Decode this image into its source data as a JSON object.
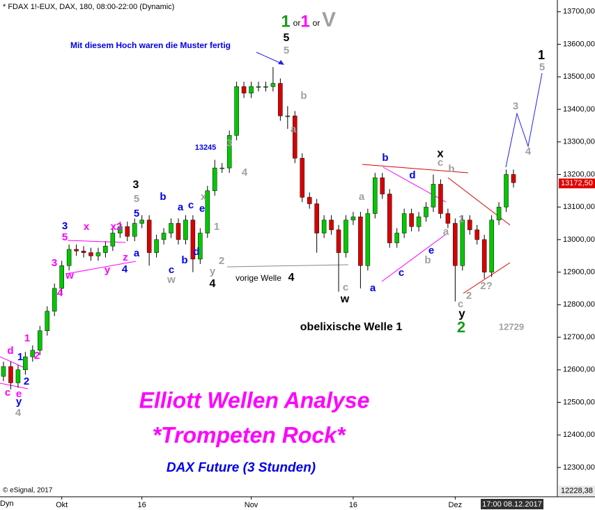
{
  "chart_data": {
    "type": "candlestick",
    "header": "* FDAX 1!-EUX, DAX, 180, 08:00-22:00 (Dynamic)",
    "copyright": "© eSignal, 2017",
    "mode": "Dyn",
    "cursor_time": "17:00 08.12.2017",
    "up_color": "#00c800",
    "down_color": "#d80000",
    "categories": [
      null,
      null,
      null,
      null,
      null,
      null,
      null,
      null,
      "Okt",
      null,
      null,
      null,
      null,
      null,
      null,
      null,
      null,
      null,
      null,
      "16",
      null,
      null,
      null,
      null,
      null,
      null,
      null,
      null,
      null,
      null,
      null,
      null,
      null,
      null,
      "Nov",
      null,
      null,
      null,
      null,
      null,
      null,
      null,
      null,
      null,
      null,
      null,
      null,
      null,
      "16",
      null,
      null,
      null,
      null,
      null,
      null,
      null,
      null,
      null,
      null,
      null,
      null,
      null,
      "Dez",
      null,
      null,
      null,
      null,
      null,
      null,
      null,
      null
    ],
    "open": [
      12580,
      12610,
      12560,
      12600,
      12640,
      12660,
      12720,
      12780,
      12850,
      12920,
      12970,
      12965,
      12960,
      12950,
      12960,
      12980,
      13020,
      13040,
      13010,
      13050,
      13060,
      12960,
      13000,
      13020,
      13050,
      13000,
      13060,
      12940,
      13020,
      13150,
      13220,
      13220,
      13320,
      13470,
      13450,
      13470,
      13470,
      13470,
      13480,
      13380,
      13380,
      13250,
      13130,
      13110,
      13020,
      13060,
      13030,
      12960,
      13060,
      13070,
      12920,
      13080,
      13190,
      13140,
      12990,
      13020,
      13080,
      13040,
      13070,
      13100,
      13170,
      13080,
      13050,
      12920,
      13060,
      13030,
      13000,
      12900,
      13060,
      13100,
      13200
    ],
    "high": [
      12625,
      12625,
      12615,
      12655,
      12675,
      12735,
      12795,
      12865,
      12935,
      12985,
      12985,
      12980,
      12975,
      12975,
      12995,
      13035,
      13055,
      13055,
      13065,
      13075,
      13075,
      13015,
      13035,
      13065,
      13065,
      13075,
      13075,
      13035,
      13165,
      13245,
      13235,
      13335,
      13485,
      13485,
      13485,
      13485,
      13485,
      13530,
      13495,
      13410,
      13395,
      13265,
      13145,
      13125,
      13075,
      13075,
      13045,
      13075,
      13085,
      13085,
      13095,
      13205,
      13205,
      13155,
      13035,
      13095,
      13095,
      13085,
      13115,
      13200,
      13185,
      13095,
      13065,
      13075,
      13075,
      13045,
      13015,
      13075,
      13115,
      13215,
      13215
    ],
    "low": [
      12565,
      12540,
      12545,
      12585,
      12625,
      12645,
      12705,
      12765,
      12835,
      12905,
      12950,
      12945,
      12935,
      12935,
      12945,
      12965,
      13005,
      12995,
      12995,
      13035,
      12920,
      12945,
      12985,
      13005,
      12985,
      12985,
      12900,
      12925,
      13005,
      13135,
      13205,
      13205,
      13305,
      13435,
      13435,
      13455,
      13455,
      13455,
      13365,
      13340,
      13235,
      13115,
      13095,
      12960,
      13005,
      13015,
      12840,
      12945,
      13045,
      12850,
      12905,
      13065,
      13125,
      12975,
      12975,
      13005,
      13025,
      13025,
      13055,
      13085,
      13065,
      13035,
      12810,
      12905,
      13015,
      12985,
      12880,
      12885,
      13045,
      13085,
      13160
    ],
    "close": [
      12610,
      12560,
      12600,
      12640,
      12660,
      12720,
      12780,
      12850,
      12920,
      12970,
      12965,
      12960,
      12950,
      12960,
      12980,
      13020,
      13040,
      13010,
      13050,
      13060,
      12960,
      13000,
      13020,
      13050,
      13000,
      13060,
      12940,
      13020,
      13150,
      13220,
      13220,
      13320,
      13470,
      13450,
      13470,
      13470,
      13470,
      13480,
      13380,
      13380,
      13250,
      13130,
      13110,
      13020,
      13060,
      13030,
      12960,
      13060,
      13070,
      12920,
      13080,
      13190,
      13140,
      12990,
      13020,
      13080,
      13040,
      13070,
      13100,
      13170,
      13080,
      13050,
      12920,
      13060,
      13030,
      13000,
      12900,
      13060,
      13100,
      13200,
      13175
    ],
    "ylim": [
      12210,
      13736
    ],
    "yticks": [
      {
        "value": 12300,
        "label": "12300,00"
      },
      {
        "value": 12400,
        "label": "12400,00"
      },
      {
        "value": 12500,
        "label": "12500,00"
      },
      {
        "value": 12600,
        "label": "12600,00"
      },
      {
        "value": 12700,
        "label": "12700,00"
      },
      {
        "value": 12800,
        "label": "12800,00"
      },
      {
        "value": 12900,
        "label": "12900,00"
      },
      {
        "value": 13000,
        "label": "13000,00"
      },
      {
        "value": 13100,
        "label": "13100,00"
      },
      {
        "value": 13200,
        "label": "13200,00"
      },
      {
        "value": 13300,
        "label": "13300,00"
      },
      {
        "value": 13400,
        "label": "13400,00"
      },
      {
        "value": 13500,
        "label": "13500,00"
      },
      {
        "value": 13600,
        "label": "13600,00"
      },
      {
        "value": 13700,
        "label": "13700,00"
      }
    ],
    "current_price": {
      "value": 13172.5,
      "label": "13172,50"
    },
    "bottom_price": {
      "value": 12228.38,
      "label": "12228,38"
    },
    "annotations": [
      {
        "text": "1",
        "color": "#1a9a1a"
      },
      {
        "text": "or",
        "color": "#000"
      },
      {
        "text": "1",
        "color": "#ff00ff"
      },
      {
        "text": "or",
        "color": "#000"
      },
      {
        "text": "V",
        "color": "#a0a0a0"
      },
      {
        "text": "5",
        "color": "#000"
      },
      {
        "text": "5",
        "color": "#a0a0a0"
      },
      {
        "text": "Mit diesem Hoch waren die Muster fertig",
        "color": "#0000ee"
      },
      {
        "text": "1",
        "color": "#000"
      },
      {
        "text": "5",
        "color": "#a0a0a0"
      },
      {
        "text": "3",
        "color": "#a0a0a0"
      },
      {
        "text": "4",
        "color": "#a0a0a0"
      },
      {
        "text": "b",
        "color": "#a0a0a0"
      },
      {
        "text": "a",
        "color": "#a0a0a0"
      },
      {
        "text": "13245",
        "color": "#0000ee"
      },
      {
        "text": "3",
        "color": "#a0a0a0"
      },
      {
        "text": "4",
        "color": "#a0a0a0"
      },
      {
        "text": "3",
        "color": "#000"
      },
      {
        "text": "5",
        "color": "#a0a0a0"
      },
      {
        "text": "5",
        "color": "#0000ee"
      },
      {
        "text": "a",
        "color": "#0000ee"
      },
      {
        "text": "4",
        "color": "#0000ee"
      },
      {
        "text": "b",
        "color": "#0000ee"
      },
      {
        "text": "a",
        "color": "#0000ee"
      },
      {
        "text": "c",
        "color": "#0000ee"
      },
      {
        "text": "e",
        "color": "#0000ee"
      },
      {
        "text": "x",
        "color": "#a0a0a0"
      },
      {
        "text": "d",
        "color": "#0000ee"
      },
      {
        "text": "c",
        "color": "#0000ee"
      },
      {
        "text": "b",
        "color": "#0000ee"
      },
      {
        "text": "w",
        "color": "#a0a0a0"
      },
      {
        "text": "1",
        "color": "#a0a0a0"
      },
      {
        "text": "y",
        "color": "#a0a0a0"
      },
      {
        "text": "2",
        "color": "#a0a0a0"
      },
      {
        "text": "4",
        "color": "#000"
      },
      {
        "text": "vorige Welle",
        "color": "#000"
      },
      {
        "text": "4",
        "color": "#000"
      },
      {
        "text": "3",
        "color": "#0000ee"
      },
      {
        "text": "5",
        "color": "#ff00ff"
      },
      {
        "text": "x",
        "color": "#ff00ff"
      },
      {
        "text": "x2",
        "color": "#ff00ff"
      },
      {
        "text": "w",
        "color": "#ff00ff"
      },
      {
        "text": "y",
        "color": "#ff00ff"
      },
      {
        "text": "z",
        "color": "#ff00ff"
      },
      {
        "text": "3",
        "color": "#ff00ff"
      },
      {
        "text": "4",
        "color": "#ff00ff"
      },
      {
        "text": "1",
        "color": "#ff00ff"
      },
      {
        "text": "2",
        "color": "#ff00ff"
      },
      {
        "text": "1",
        "color": "#0000ee"
      },
      {
        "text": "2",
        "color": "#0000ee"
      },
      {
        "text": "d",
        "color": "#ff00ff"
      },
      {
        "text": "c",
        "color": "#ff00ff"
      },
      {
        "text": "e",
        "color": "#ff00ff"
      },
      {
        "text": "y",
        "color": "#0000ee"
      },
      {
        "text": "4",
        "color": "#a0a0a0"
      },
      {
        "text": "b",
        "color": "#0000ee"
      },
      {
        "text": "d",
        "color": "#0000ee"
      },
      {
        "text": "a",
        "color": "#a0a0a0"
      },
      {
        "text": "a",
        "color": "#0000ee"
      },
      {
        "text": "c",
        "color": "#a0a0a0"
      },
      {
        "text": "w",
        "color": "#000"
      },
      {
        "text": "c",
        "color": "#0000ee"
      },
      {
        "text": "e",
        "color": "#0000ee"
      },
      {
        "text": "b",
        "color": "#a0a0a0"
      },
      {
        "text": "a",
        "color": "#a0a0a0"
      },
      {
        "text": "x",
        "color": "#000"
      },
      {
        "text": "c",
        "color": "#a0a0a0"
      },
      {
        "text": "b",
        "color": "#a0a0a0"
      },
      {
        "text": "1",
        "color": "#a0a0a0"
      },
      {
        "text": "c",
        "color": "#a0a0a0"
      },
      {
        "text": "y",
        "color": "#000"
      },
      {
        "text": "2",
        "color": "#1a9a1a"
      },
      {
        "text": "2",
        "color": "#a0a0a0"
      },
      {
        "text": "2?",
        "color": "#a0a0a0"
      },
      {
        "text": "obelixische Welle 1",
        "color": "#000"
      },
      {
        "text": "12729",
        "color": "#a0a0a0"
      },
      {
        "text": "Elliott Wellen Analyse",
        "color": "#ff00ff"
      },
      {
        "text": "*Trompeten Rock*",
        "color": "#ff00ff"
      },
      {
        "text": "DAX Future (3 Stunden)",
        "color": "#0000ee"
      }
    ]
  }
}
